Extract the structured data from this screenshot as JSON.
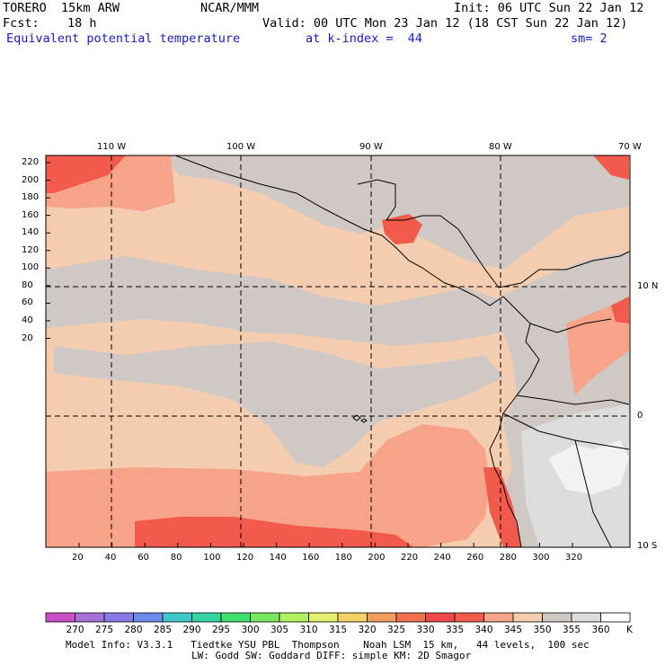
{
  "header": {
    "model": "TORERO  15km ARW",
    "org": "NCAR/MMM",
    "init": "Init: 06 UTC Sun 22 Jan 12",
    "fcst_label": "Fcst:",
    "fcst_value": "18 h",
    "valid": "Valid: 00 UTC Mon 23 Jan 12 (18 CST Sun 22 Jan 12)",
    "field": "Equivalent potential temperature",
    "level": "at k-index =  44",
    "smooth": "sm= 2"
  },
  "map": {
    "lon_labels": [
      "110 W",
      "100 W",
      "90 W",
      "80 W",
      "70 W"
    ],
    "lat_labels": [
      "10 N",
      "0",
      "10 S"
    ],
    "y_ticks": [
      "220",
      "200",
      "180",
      "160",
      "140",
      "120",
      "100",
      "80",
      "60",
      "40",
      "20"
    ],
    "x_ticks": [
      "20",
      "40",
      "60",
      "80",
      "100",
      "120",
      "140",
      "160",
      "180",
      "200",
      "220",
      "240",
      "260",
      "280",
      "300",
      "320"
    ],
    "colors": {
      "bg": "#f4cdb0",
      "gray": "#cfc8c4",
      "lightgray": "#dcdcdc",
      "white": "#f2f2f2",
      "salmon": "#f7a38a",
      "red": "#f25a4c"
    }
  },
  "colorbar": {
    "labels": [
      "270",
      "275",
      "280",
      "285",
      "290",
      "295",
      "300",
      "305",
      "310",
      "315",
      "320",
      "325",
      "330",
      "335",
      "340",
      "345",
      "350",
      "355",
      "360"
    ],
    "unit": "K",
    "colors": [
      "#c84fc8",
      "#a770d6",
      "#8a78e6",
      "#6f8aee",
      "#3ec8c8",
      "#33d6a0",
      "#40e070",
      "#78e860",
      "#b0f060",
      "#e6f070",
      "#f4d068",
      "#f39c60",
      "#f2704e",
      "#f04848",
      "#f25a4c",
      "#f7a38a",
      "#f4cdb0",
      "#cfc8c4",
      "#dcdcdc",
      "#ffffff"
    ]
  },
  "footer": {
    "line1": "Model Info: V3.3.1   Tiedtke YSU PBL  Thompson    Noah LSM  15 km,   44 levels,  100 sec",
    "line2": "LW: Godd SW: Goddard DIFF: simple KM: 2D Smagor"
  }
}
